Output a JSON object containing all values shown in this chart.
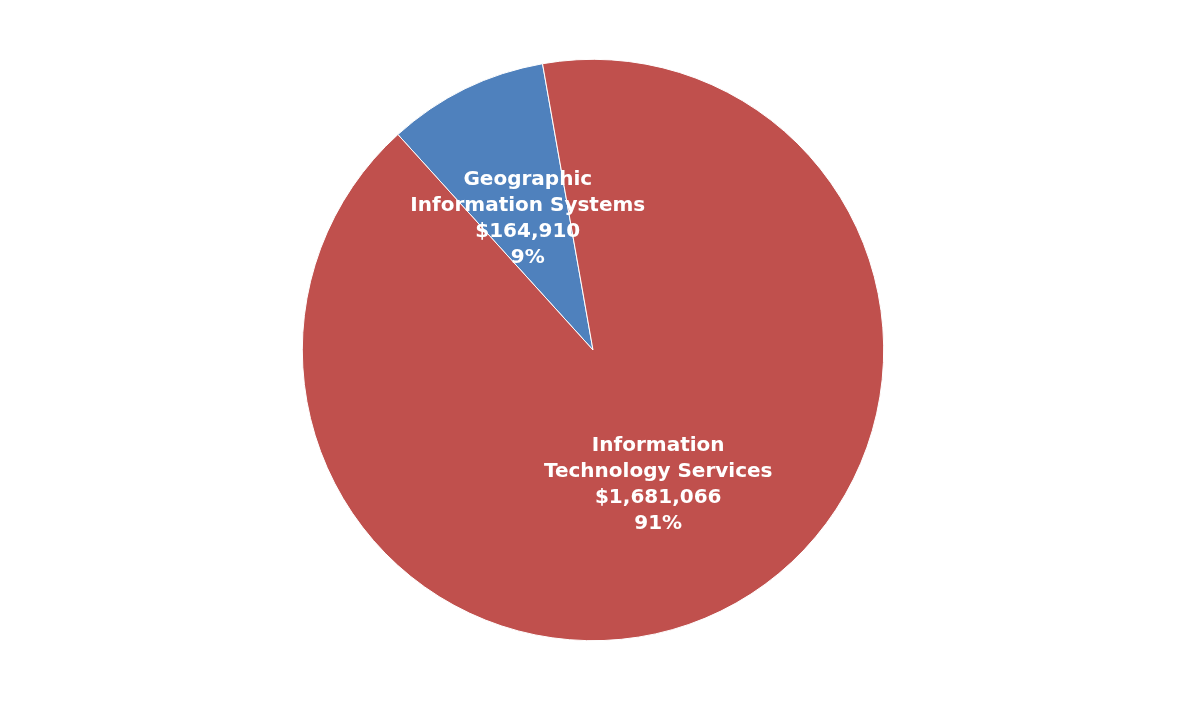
{
  "chart_data": {
    "type": "pie",
    "categories": [
      "Geographic\nInformation Systems",
      "Information\nTechnology Services"
    ],
    "values": [
      164910,
      1681066
    ],
    "colors": [
      "#4f81bd",
      "#c0504d"
    ],
    "value_labels": [
      "$164,910\n9%",
      "$1,681,066\n91%"
    ],
    "legend": false
  }
}
